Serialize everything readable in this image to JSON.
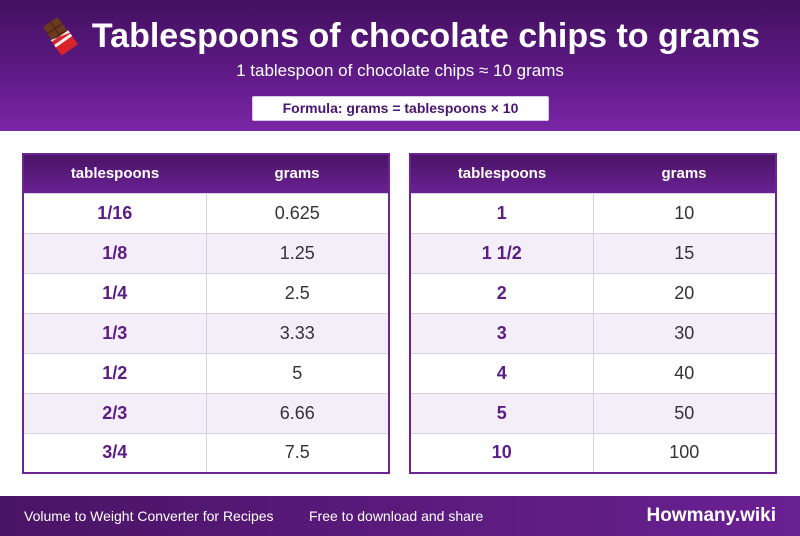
{
  "header": {
    "icon": "chocolate-bar-icon",
    "title": "Tablespoons of chocolate chips to grams",
    "subtitle": "1 tablespoon of chocolate chips ≈ 10 grams",
    "formula": "Formula: grams = tablespoons × 10"
  },
  "tables": [
    {
      "columns": [
        "tablespoons",
        "grams"
      ],
      "rows": [
        [
          "1/16",
          "0.625"
        ],
        [
          "1/8",
          "1.25"
        ],
        [
          "1/4",
          "2.5"
        ],
        [
          "1/3",
          "3.33"
        ],
        [
          "1/2",
          "5"
        ],
        [
          "2/3",
          "6.66"
        ],
        [
          "3/4",
          "7.5"
        ]
      ]
    },
    {
      "columns": [
        "tablespoons",
        "grams"
      ],
      "rows": [
        [
          "1",
          "10"
        ],
        [
          "1 1/2",
          "15"
        ],
        [
          "2",
          "20"
        ],
        [
          "3",
          "30"
        ],
        [
          "4",
          "40"
        ],
        [
          "5",
          "50"
        ],
        [
          "10",
          "100"
        ]
      ]
    }
  ],
  "footer": {
    "left": "Volume to Weight Converter for Recipes",
    "middle": "Free to download and share",
    "brand": "Howmany.wiki"
  },
  "colors": {
    "header_dark": "#43105f",
    "header_light": "#7a26a6",
    "accent_text": "#5c1c85",
    "row_alt": "#f3eef8"
  }
}
